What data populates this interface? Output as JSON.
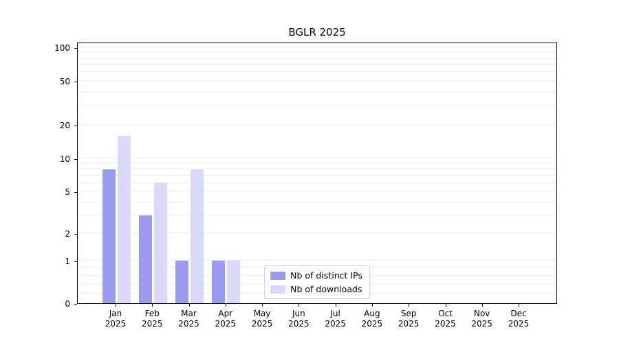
{
  "chart_data": {
    "type": "bar",
    "title": "BGLR 2025",
    "categories": [
      {
        "month": "Jan",
        "year": "2025"
      },
      {
        "month": "Feb",
        "year": "2025"
      },
      {
        "month": "Mar",
        "year": "2025"
      },
      {
        "month": "Apr",
        "year": "2025"
      },
      {
        "month": "May",
        "year": "2025"
      },
      {
        "month": "Jun",
        "year": "2025"
      },
      {
        "month": "Jul",
        "year": "2025"
      },
      {
        "month": "Aug",
        "year": "2025"
      },
      {
        "month": "Sep",
        "year": "2025"
      },
      {
        "month": "Oct",
        "year": "2025"
      },
      {
        "month": "Nov",
        "year": "2025"
      },
      {
        "month": "Dec",
        "year": "2025"
      }
    ],
    "series": [
      {
        "name": "Nb of distinct IPs",
        "color": "#9a9af0",
        "values": [
          8,
          3,
          1,
          1,
          0,
          0,
          0,
          0,
          0,
          0,
          0,
          0
        ]
      },
      {
        "name": "Nb of downloads",
        "color": "#d9d9f8",
        "values": [
          16,
          6,
          8,
          1,
          0,
          0,
          0,
          0,
          0,
          0,
          0,
          0
        ]
      }
    ],
    "xlabel": "",
    "ylabel": "",
    "y_ticks": [
      0,
      1,
      2,
      5,
      10,
      20,
      50,
      100
    ],
    "ylim": [
      0,
      100
    ],
    "scale": "asinh",
    "grid": true,
    "grid_lines": [
      0.2,
      0.4,
      0.6,
      0.8,
      1,
      2,
      3,
      4,
      5,
      6,
      7,
      8,
      9,
      10,
      20,
      30,
      40,
      50,
      60,
      70,
      80,
      90,
      100
    ],
    "legend_position": "lower center"
  }
}
